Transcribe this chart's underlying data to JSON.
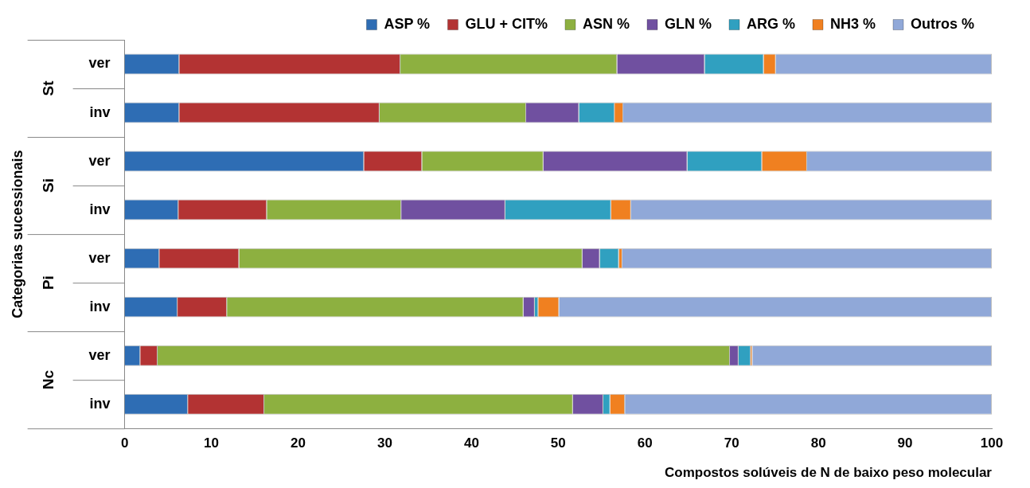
{
  "chart_data": {
    "type": "bar",
    "orientation": "horizontal",
    "stacked": true,
    "xlabel": "Compostos solúveis de N de baixo peso molecular",
    "ylabel": "Categorias sucessionais",
    "categories": [
      "ver",
      "inv",
      "ver",
      "inv",
      "ver",
      "inv",
      "ver",
      "inv"
    ],
    "annotations": [
      "St",
      "Si",
      "Pi",
      "Nc"
    ],
    "xlim": [
      0,
      100
    ],
    "xticks": [
      0,
      10,
      20,
      30,
      40,
      50,
      60,
      70,
      80,
      90,
      100
    ],
    "grid": false,
    "legend": "top",
    "series": [
      {
        "name": "ASP %",
        "color": "#2e6db4",
        "values": [
          6.3,
          6.3,
          27.6,
          6.2,
          4.0,
          6.1,
          1.8,
          7.3
        ]
      },
      {
        "name": "GLU + CIT%",
        "color": "#b33333",
        "values": [
          25.5,
          23.1,
          6.7,
          10.2,
          9.2,
          5.7,
          2.0,
          8.8
        ]
      },
      {
        "name": "ASN %",
        "color": "#8db040",
        "values": [
          25.0,
          16.9,
          14.0,
          15.5,
          39.6,
          34.2,
          66.0,
          35.6
        ]
      },
      {
        "name": "GLN %",
        "color": "#7050a0",
        "values": [
          10.1,
          6.1,
          16.6,
          12.0,
          2.0,
          1.3,
          1.0,
          3.5
        ]
      },
      {
        "name": "ARG %",
        "color": "#30a0c0",
        "values": [
          6.8,
          4.1,
          8.6,
          12.2,
          2.2,
          0.4,
          1.4,
          0.8
        ]
      },
      {
        "name": "NH3 %",
        "color": "#f08020",
        "values": [
          1.4,
          1.0,
          5.2,
          2.3,
          0.4,
          2.4,
          0.2,
          1.7
        ]
      },
      {
        "name": "Outros %",
        "color": "#90a8d8",
        "values": [
          24.9,
          42.5,
          21.3,
          41.6,
          42.6,
          49.9,
          27.6,
          42.3
        ]
      }
    ]
  }
}
